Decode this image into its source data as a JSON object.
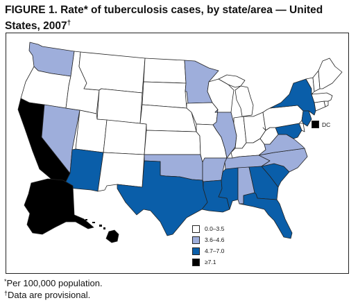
{
  "title": "FIGURE 1. Rate* of tuberculosis cases, by state/area — United States, 2007",
  "title_line1": "FIGURE 1. Rate* of tuberculosis cases, by state/area — United",
  "title_line2": "States, 2007",
  "title_mark": "†",
  "colors": {
    "class1": "#ffffff",
    "class2": "#9eaedb",
    "class3": "#0a5ea9",
    "class4": "#000000",
    "outline": "#222222"
  },
  "legend": [
    {
      "label": "0.0–3.5",
      "color": "#ffffff"
    },
    {
      "label": "3.6–4.6",
      "color": "#9eaedb"
    },
    {
      "label": "4.7–7.0",
      "color": "#0a5ea9"
    },
    {
      "label": "≥7.1",
      "color": "#000000"
    }
  ],
  "dc": {
    "label": "DC",
    "color": "#000000"
  },
  "footnotes": [
    {
      "mark": "*",
      "text": "Per 100,000 population."
    },
    {
      "mark": "†",
      "text": "Data are provisional."
    }
  ],
  "states": [
    {
      "id": "WA",
      "class": 2
    },
    {
      "id": "OR",
      "class": 1
    },
    {
      "id": "CA",
      "class": 4
    },
    {
      "id": "NV",
      "class": 2
    },
    {
      "id": "ID",
      "class": 1
    },
    {
      "id": "MT",
      "class": 1
    },
    {
      "id": "WY",
      "class": 1
    },
    {
      "id": "UT",
      "class": 1
    },
    {
      "id": "AZ",
      "class": 3
    },
    {
      "id": "CO",
      "class": 1
    },
    {
      "id": "NM",
      "class": 1
    },
    {
      "id": "ND",
      "class": 1
    },
    {
      "id": "SD",
      "class": 1
    },
    {
      "id": "NE",
      "class": 1
    },
    {
      "id": "KS",
      "class": 1
    },
    {
      "id": "OK",
      "class": 2
    },
    {
      "id": "TX",
      "class": 3
    },
    {
      "id": "MN",
      "class": 2
    },
    {
      "id": "IA",
      "class": 1
    },
    {
      "id": "MO",
      "class": 1
    },
    {
      "id": "AR",
      "class": 2
    },
    {
      "id": "LA",
      "class": 3
    },
    {
      "id": "WI",
      "class": 1
    },
    {
      "id": "IL",
      "class": 2
    },
    {
      "id": "MI",
      "class": 1
    },
    {
      "id": "IN",
      "class": 1
    },
    {
      "id": "OH",
      "class": 1
    },
    {
      "id": "KY",
      "class": 1
    },
    {
      "id": "TN",
      "class": 2
    },
    {
      "id": "MS",
      "class": 3
    },
    {
      "id": "AL",
      "class": 2
    },
    {
      "id": "GA",
      "class": 3
    },
    {
      "id": "FL",
      "class": 3
    },
    {
      "id": "SC",
      "class": 3
    },
    {
      "id": "NC",
      "class": 2
    },
    {
      "id": "VA",
      "class": 2
    },
    {
      "id": "WV",
      "class": 1
    },
    {
      "id": "PA",
      "class": 1
    },
    {
      "id": "NY",
      "class": 3
    },
    {
      "id": "NJ",
      "class": 3
    },
    {
      "id": "MD",
      "class": 3
    },
    {
      "id": "DE",
      "class": 1
    },
    {
      "id": "CT",
      "class": 1
    },
    {
      "id": "RI",
      "class": 1
    },
    {
      "id": "MA",
      "class": 1
    },
    {
      "id": "VT",
      "class": 1
    },
    {
      "id": "NH",
      "class": 1
    },
    {
      "id": "ME",
      "class": 1
    },
    {
      "id": "AK",
      "class": 4
    },
    {
      "id": "HI",
      "class": 4
    }
  ]
}
